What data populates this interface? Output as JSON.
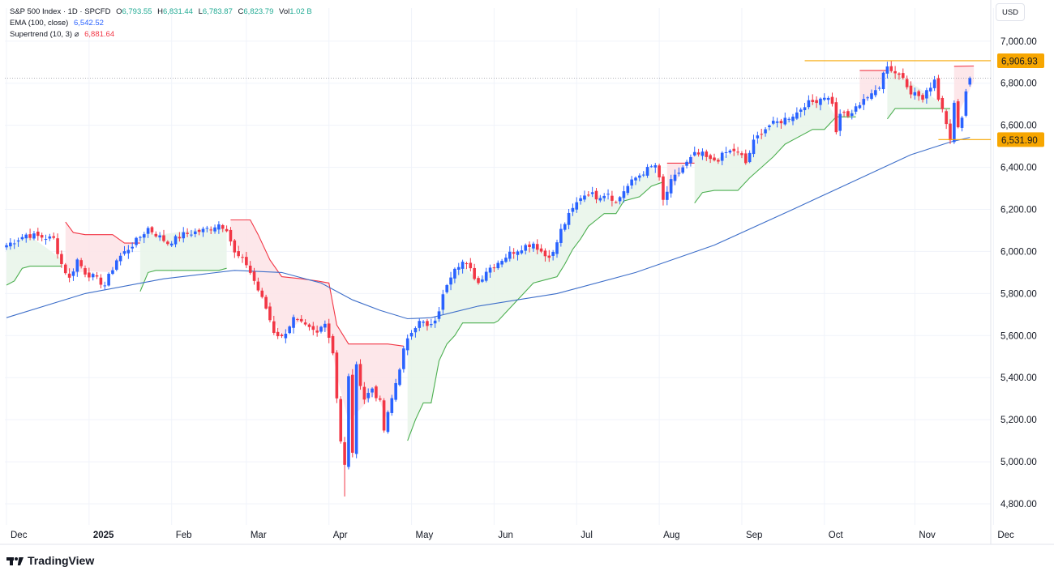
{
  "header": {
    "symbol": "S&P 500 Index · 1D · SPCFD",
    "open_key": "O",
    "open": "6,793.55",
    "high_key": "H",
    "high": "6,831.44",
    "low_key": "L",
    "low": "6,783.87",
    "close_key": "C",
    "close": "6,823.79",
    "vol_key": "Vol",
    "vol": "1.02 B",
    "ema_label": "EMA (100, close)",
    "ema_value": "6,542.52",
    "st_label": "Supertrend (10, 3)",
    "st_glyph": "⌀",
    "st_value": "6,881.64",
    "currency": "USD"
  },
  "brand": "TradingView",
  "colors": {
    "up": "#2962ff",
    "down": "#f23645",
    "ema": "#3d6ec9",
    "st_up": "#4caf50",
    "st_down": "#f23645",
    "st_up_fill": "#e8f5e9",
    "st_down_fill": "#fde3e6",
    "level": "#f7a600",
    "grid": "#f0f3fa"
  },
  "chart_data": {
    "type": "candlestick",
    "ylim": [
      4700,
      7080
    ],
    "y_ticks": [
      4800,
      5000,
      5200,
      5400,
      5600,
      5800,
      6000,
      6200,
      6400,
      6600,
      6800,
      7000
    ],
    "y_tick_labels": [
      "4,800.00",
      "5,000.00",
      "5,200.00",
      "5,400.00",
      "5,600.00",
      "5,800.00",
      "6,000.00",
      "6,200.00",
      "6,400.00",
      "6,600.00",
      "6,800.00",
      "7,000.00"
    ],
    "x_labels": [
      {
        "text": "Dec",
        "index": 0,
        "bold": false
      },
      {
        "text": "2025",
        "index": 21,
        "bold": true
      },
      {
        "text": "Feb",
        "index": 42,
        "bold": false
      },
      {
        "text": "Mar",
        "index": 61,
        "bold": false
      },
      {
        "text": "Apr",
        "index": 82,
        "bold": false
      },
      {
        "text": "May",
        "index": 103,
        "bold": false
      },
      {
        "text": "Jun",
        "index": 124,
        "bold": false
      },
      {
        "text": "Jul",
        "index": 145,
        "bold": false
      },
      {
        "text": "Aug",
        "index": 166,
        "bold": false
      },
      {
        "text": "Sep",
        "index": 187,
        "bold": false
      },
      {
        "text": "Oct",
        "index": 208,
        "bold": false
      },
      {
        "text": "Nov",
        "index": 231,
        "bold": false
      },
      {
        "text": "Dec",
        "index": 251,
        "bold": false
      }
    ],
    "close_waypoints": [
      [
        0,
        6030
      ],
      [
        5,
        6080
      ],
      [
        12,
        6060
      ],
      [
        14,
        5940
      ],
      [
        16,
        5870
      ],
      [
        18,
        5960
      ],
      [
        20,
        5900
      ],
      [
        22,
        5880
      ],
      [
        25,
        5840
      ],
      [
        28,
        5960
      ],
      [
        33,
        6050
      ],
      [
        36,
        6110
      ],
      [
        41,
        6040
      ],
      [
        45,
        6080
      ],
      [
        50,
        6100
      ],
      [
        54,
        6130
      ],
      [
        56,
        6110
      ],
      [
        58,
        5990
      ],
      [
        61,
        5940
      ],
      [
        63,
        5860
      ],
      [
        66,
        5730
      ],
      [
        68,
        5620
      ],
      [
        70,
        5590
      ],
      [
        73,
        5680
      ],
      [
        76,
        5640
      ],
      [
        79,
        5610
      ],
      [
        81,
        5670
      ],
      [
        83,
        5520
      ],
      [
        85,
        5100
      ],
      [
        86,
        4980
      ],
      [
        87,
        5400
      ],
      [
        88,
        5050
      ],
      [
        89,
        5450
      ],
      [
        91,
        5300
      ],
      [
        93,
        5350
      ],
      [
        95,
        5280
      ],
      [
        96,
        5150
      ],
      [
        98,
        5300
      ],
      [
        100,
        5450
      ],
      [
        101,
        5530
      ],
      [
        103,
        5620
      ],
      [
        105,
        5680
      ],
      [
        107,
        5640
      ],
      [
        109,
        5660
      ],
      [
        112,
        5850
      ],
      [
        114,
        5930
      ],
      [
        116,
        5950
      ],
      [
        118,
        5910
      ],
      [
        120,
        5850
      ],
      [
        122,
        5910
      ],
      [
        125,
        5950
      ],
      [
        128,
        5990
      ],
      [
        131,
        6020
      ],
      [
        134,
        6040
      ],
      [
        137,
        5980
      ],
      [
        139,
        5990
      ],
      [
        141,
        6100
      ],
      [
        143,
        6170
      ],
      [
        146,
        6260
      ],
      [
        148,
        6280
      ],
      [
        150,
        6260
      ],
      [
        153,
        6280
      ],
      [
        155,
        6230
      ],
      [
        157,
        6290
      ],
      [
        160,
        6350
      ],
      [
        163,
        6390
      ],
      [
        165,
        6410
      ],
      [
        166,
        6340
      ],
      [
        167,
        6240
      ],
      [
        169,
        6330
      ],
      [
        172,
        6400
      ],
      [
        175,
        6460
      ],
      [
        177,
        6460
      ],
      [
        179,
        6430
      ],
      [
        181,
        6440
      ],
      [
        183,
        6470
      ],
      [
        185,
        6480
      ],
      [
        187,
        6450
      ],
      [
        188,
        6420
      ],
      [
        190,
        6520
      ],
      [
        192,
        6570
      ],
      [
        194,
        6600
      ],
      [
        197,
        6620
      ],
      [
        199,
        6640
      ],
      [
        201,
        6660
      ],
      [
        203,
        6700
      ],
      [
        205,
        6710
      ],
      [
        207,
        6730
      ],
      [
        208,
        6740
      ],
      [
        210,
        6710
      ],
      [
        211,
        6560
      ],
      [
        212,
        6660
      ],
      [
        214,
        6640
      ],
      [
        216,
        6680
      ],
      [
        218,
        6730
      ],
      [
        220,
        6740
      ],
      [
        222,
        6790
      ],
      [
        223,
        6860
      ],
      [
        224,
        6880
      ],
      [
        226,
        6850
      ],
      [
        228,
        6830
      ],
      [
        230,
        6760
      ],
      [
        232,
        6740
      ],
      [
        233,
        6720
      ],
      [
        235,
        6790
      ],
      [
        236,
        6820
      ],
      [
        237,
        6730
      ],
      [
        238,
        6680
      ],
      [
        239,
        6620
      ],
      [
        240,
        6540
      ],
      [
        241,
        6700
      ],
      [
        242,
        6580
      ],
      [
        243,
        6650
      ],
      [
        244,
        6760
      ],
      [
        245,
        6823
      ]
    ],
    "ema": {
      "name": "EMA (100, close)",
      "points": [
        [
          0,
          5685
        ],
        [
          20,
          5800
        ],
        [
          40,
          5870
        ],
        [
          58,
          5910
        ],
        [
          70,
          5900
        ],
        [
          80,
          5850
        ],
        [
          88,
          5770
        ],
        [
          95,
          5720
        ],
        [
          102,
          5680
        ],
        [
          108,
          5685
        ],
        [
          120,
          5740
        ],
        [
          140,
          5800
        ],
        [
          160,
          5900
        ],
        [
          180,
          6030
        ],
        [
          200,
          6200
        ],
        [
          215,
          6330
        ],
        [
          230,
          6460
        ],
        [
          240,
          6520
        ],
        [
          245,
          6542.52
        ]
      ]
    },
    "supertrend": {
      "name": "Supertrend (10, 3)",
      "segments": [
        {
          "dir": "up",
          "points": [
            [
              0,
              5840
            ],
            [
              2,
              5860
            ],
            [
              4,
              5920
            ],
            [
              6,
              5930
            ],
            [
              14,
              5930
            ]
          ]
        },
        {
          "dir": "down",
          "points": [
            [
              15,
              6140
            ],
            [
              17,
              6090
            ],
            [
              20,
              6080
            ],
            [
              27,
              6080
            ],
            [
              30,
              6040
            ],
            [
              34,
              6040
            ]
          ]
        },
        {
          "dir": "up",
          "points": [
            [
              34,
              5810
            ],
            [
              36,
              5900
            ],
            [
              38,
              5910
            ],
            [
              54,
              5910
            ],
            [
              56,
              5920
            ]
          ]
        },
        {
          "dir": "down",
          "points": [
            [
              57,
              6150
            ],
            [
              62,
              6150
            ],
            [
              64,
              6080
            ],
            [
              67,
              5960
            ],
            [
              70,
              5880
            ],
            [
              75,
              5870
            ],
            [
              79,
              5860
            ],
            [
              82,
              5850
            ],
            [
              84,
              5650
            ],
            [
              87,
              5560
            ],
            [
              94,
              5560
            ],
            [
              97,
              5560
            ],
            [
              101,
              5550
            ]
          ]
        },
        {
          "dir": "up",
          "points": [
            [
              102,
              5100
            ],
            [
              104,
              5200
            ],
            [
              106,
              5280
            ],
            [
              108,
              5280
            ],
            [
              110,
              5480
            ],
            [
              112,
              5560
            ],
            [
              114,
              5600
            ],
            [
              116,
              5660
            ],
            [
              120,
              5660
            ],
            [
              124,
              5660
            ],
            [
              125,
              5670
            ],
            [
              127,
              5710
            ],
            [
              131,
              5790
            ],
            [
              134,
              5850
            ],
            [
              138,
              5870
            ],
            [
              140,
              5880
            ],
            [
              142,
              5940
            ],
            [
              144,
              6010
            ],
            [
              146,
              6060
            ],
            [
              148,
              6120
            ],
            [
              150,
              6150
            ],
            [
              152,
              6180
            ],
            [
              155,
              6180
            ],
            [
              157,
              6240
            ],
            [
              161,
              6260
            ],
            [
              164,
              6310
            ],
            [
              167,
              6330
            ]
          ]
        },
        {
          "dir": "down",
          "points": [
            [
              168,
              6420
            ],
            [
              173,
              6420
            ],
            [
              175,
              6420
            ]
          ]
        },
        {
          "dir": "up",
          "points": [
            [
              175,
              6230
            ],
            [
              177,
              6280
            ],
            [
              180,
              6290
            ],
            [
              186,
              6290
            ],
            [
              189,
              6350
            ],
            [
              192,
              6400
            ],
            [
              195,
              6450
            ],
            [
              198,
              6510
            ],
            [
              201,
              6540
            ],
            [
              205,
              6580
            ],
            [
              208,
              6580
            ],
            [
              211,
              6640
            ],
            [
              216,
              6640
            ]
          ]
        },
        {
          "dir": "down",
          "points": [
            [
              217,
              6860
            ],
            [
              222,
              6860
            ],
            [
              224,
              6860
            ]
          ]
        },
        {
          "dir": "up",
          "points": [
            [
              224,
              6630
            ],
            [
              226,
              6680
            ],
            [
              238,
              6680
            ],
            [
              240,
              6680
            ]
          ]
        },
        {
          "dir": "down",
          "points": [
            [
              241,
              6880
            ],
            [
              246,
              6881.64
            ]
          ]
        }
      ]
    },
    "levels": [
      {
        "value": 6906.93,
        "label": "6,906.93",
        "from_index": 203
      },
      {
        "value": 6531.9,
        "label": "6,531.90",
        "from_index": 237
      }
    ],
    "last_price_line": 6823.79
  }
}
